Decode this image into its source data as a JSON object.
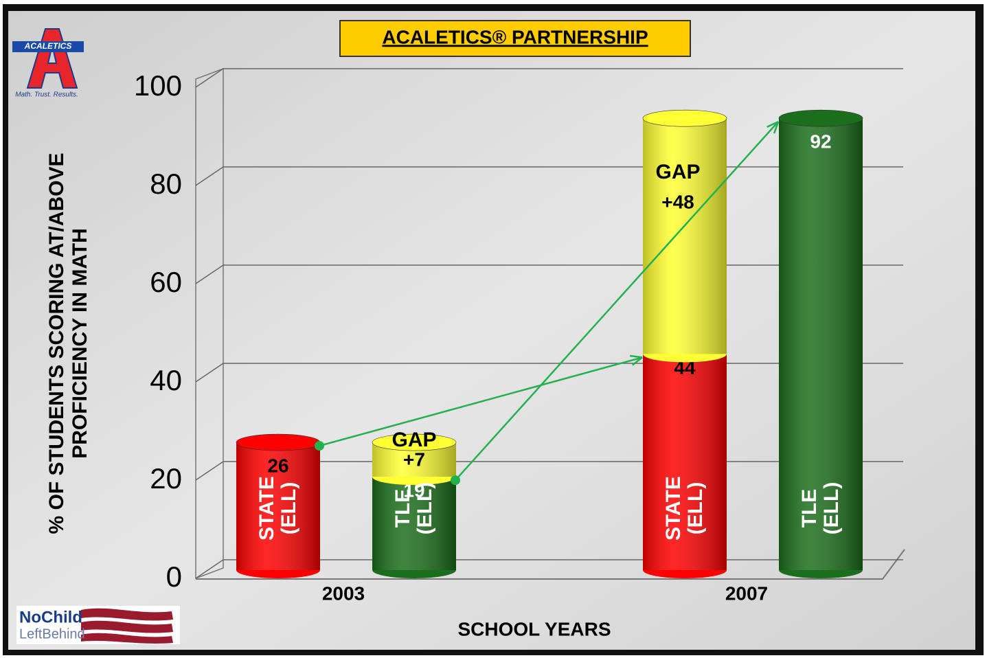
{
  "logo": {
    "name": "ACALETICS",
    "tagline": "Math. Trust. Results."
  },
  "badge": {
    "line1": "NoChild",
    "line2": "LeftBehind"
  },
  "chart_data": {
    "type": "bar",
    "title": "ACALETICS® PARTNERSHIP",
    "x_label": "SCHOOL YEARS",
    "y_label": "% OF STUDENTS SCORING AT/ABOVE PROFICIENCY IN MATH",
    "categories": [
      "2003",
      "2007"
    ],
    "series": [
      {
        "name": "STATE (ELL)",
        "color": "#ff0000",
        "values": [
          26,
          44
        ]
      },
      {
        "name": "TLE (ELL)",
        "color": "#1b6e1b",
        "values": [
          19,
          92
        ]
      },
      {
        "name": "GAP",
        "color": "#ffff33",
        "values": [
          7,
          48
        ],
        "value_labels": [
          "+7",
          "+48"
        ]
      }
    ],
    "ylim": [
      0,
      100
    ],
    "yticks": [
      0,
      20,
      40,
      60,
      80,
      100
    ],
    "grid": true
  }
}
